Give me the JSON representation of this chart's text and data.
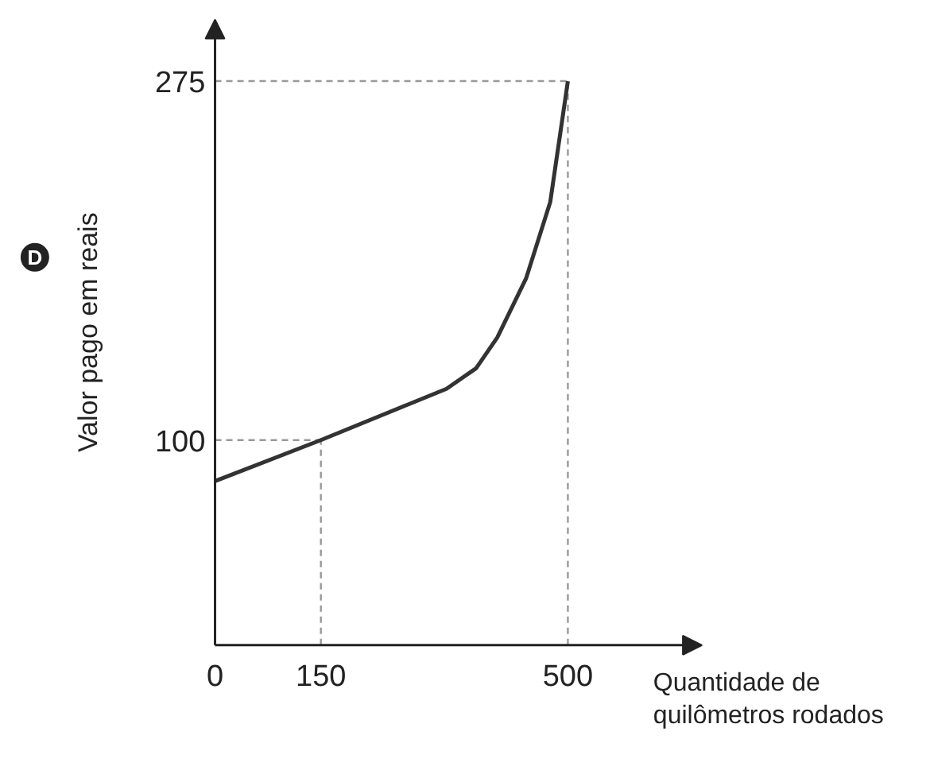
{
  "chart_data": {
    "type": "line",
    "xlabel": "Quantidade de\nquilômetros rodados",
    "ylabel": "Valor pago em reais",
    "x": [
      0,
      150,
      328,
      370,
      400,
      441,
      475,
      500
    ],
    "series": [
      {
        "color": "#333333",
        "values": [
          80,
          100,
          125,
          135,
          150,
          179,
          216,
          275
        ]
      }
    ],
    "xlim": [
      0,
      690
    ],
    "ylim": [
      0,
      305
    ],
    "xticks": [
      0,
      150,
      500
    ],
    "yticks": [
      100,
      275
    ],
    "ref_lines": [
      {
        "axis": "x",
        "value": 150,
        "line_style": "dashed",
        "color": "#999999"
      },
      {
        "axis": "x",
        "value": 500,
        "line_style": "dashed",
        "color": "#999999"
      },
      {
        "axis": "y",
        "value": 100,
        "line_style": "dashed",
        "color": "#999999"
      },
      {
        "axis": "y",
        "value": 275,
        "line_style": "dashed",
        "color": "#999999"
      }
    ],
    "annotations": [
      "D"
    ],
    "grid": false
  }
}
